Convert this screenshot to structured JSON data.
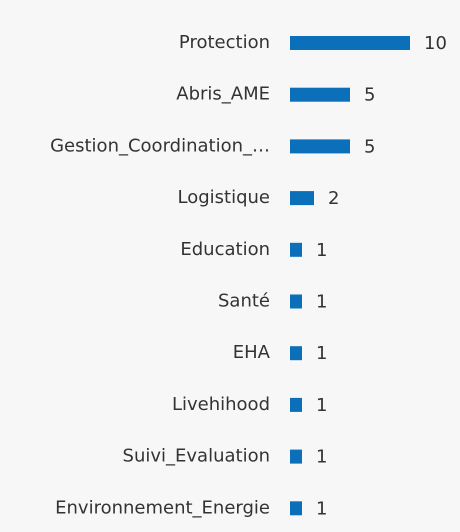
{
  "chart_data": {
    "type": "bar",
    "orientation": "horizontal",
    "categories": [
      "Protection",
      "Abris_AME",
      "Gestion_Coordination_…",
      "Logistique",
      "Education",
      "Santé",
      "EHA",
      "Livehihood",
      "Suivi_Evaluation",
      "Environnement_Energie"
    ],
    "values": [
      10,
      5,
      5,
      2,
      1,
      1,
      1,
      1,
      1,
      1
    ],
    "color": "#0b6fba"
  }
}
